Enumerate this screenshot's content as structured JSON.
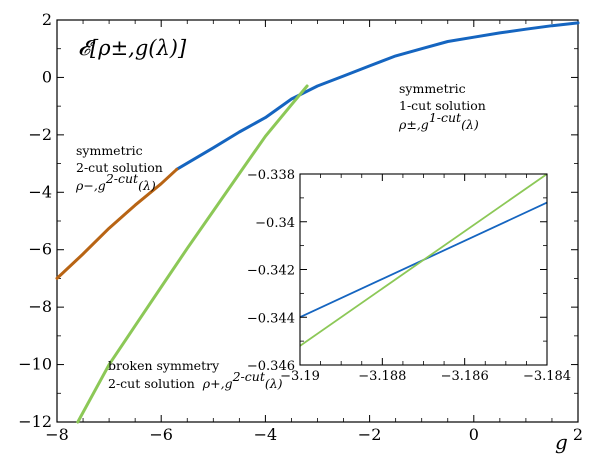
{
  "chart_data": {
    "type": "line",
    "title": "𝓔[ρ±,g(λ)]",
    "xlabel": "g",
    "ylabel": "",
    "xlim": [
      -8,
      2
    ],
    "ylim": [
      -12,
      2
    ],
    "xticks": [
      -8,
      -6,
      -4,
      -2,
      0,
      2
    ],
    "xtick_labels": [
      "−8",
      "−6",
      "−4",
      "−2",
      "0",
      "2"
    ],
    "yticks": [
      2,
      0,
      -2,
      -4,
      -6,
      -8,
      -10,
      -12
    ],
    "ytick_labels": [
      "2",
      "0",
      "−2",
      "−4",
      "−6",
      "−8",
      "−10",
      "−12"
    ],
    "colors": {
      "one_cut": "#1565c0",
      "two_cut_minus": "#b86414",
      "two_cut_plus": "#8cc857"
    },
    "series": [
      {
        "key": "one_cut",
        "x": [
          -5.7,
          -5.0,
          -4.5,
          -4.0,
          -3.5,
          -3.0,
          -2.5,
          -2.0,
          -1.5,
          -1.0,
          -0.5,
          0.0,
          0.5,
          1.0,
          1.5,
          2.0
        ],
        "y": [
          -3.2,
          -2.45,
          -1.9,
          -1.4,
          -0.75,
          -0.3,
          0.05,
          0.4,
          0.75,
          1.0,
          1.25,
          1.4,
          1.55,
          1.68,
          1.8,
          1.9
        ]
      },
      {
        "key": "two_cut_minus",
        "x": [
          -8.0,
          -7.5,
          -7.0,
          -6.5,
          -6.0,
          -5.7
        ],
        "y": [
          -7.0,
          -6.15,
          -5.25,
          -4.45,
          -3.7,
          -3.2
        ]
      },
      {
        "key": "two_cut_plus",
        "x": [
          -7.6,
          -7.0,
          -6.5,
          -6.0,
          -5.5,
          -5.0,
          -4.5,
          -4.0,
          -3.5,
          -3.2
        ],
        "y": [
          -12.0,
          -10.0,
          -8.65,
          -7.3,
          -5.95,
          -4.65,
          -3.35,
          -2.05,
          -0.95,
          -0.3
        ]
      }
    ],
    "annotations": {
      "one_cut": {
        "line1": "symmetric",
        "line2": "1-cut solution",
        "math": "ρ±,g",
        "sup": "1-cut",
        "arg": "(λ)"
      },
      "two_cut_minus": {
        "line1": "symmetric",
        "line2": "2-cut solution",
        "math": "ρ−,g",
        "sup": "2-cut",
        "arg": "(λ)"
      },
      "two_cut_plus": {
        "line1": "broken symmetry",
        "line2": "2-cut solution",
        "math": "ρ+,g",
        "sup": "2-cut",
        "arg": "(λ)"
      }
    },
    "inset": {
      "xlim": [
        -3.19,
        -3.184
      ],
      "ylim": [
        -0.346,
        -0.338
      ],
      "xticks": [
        -3.19,
        -3.188,
        -3.186,
        -3.184
      ],
      "xtick_labels": [
        "−3.19",
        "−3.188",
        "−3.186",
        "−3.184"
      ],
      "yticks": [
        -0.338,
        -0.34,
        -0.342,
        -0.344,
        -0.346
      ],
      "ytick_labels": [
        "−0.338",
        "−0.34",
        "−0.342",
        "−0.344",
        "−0.346"
      ],
      "series": [
        {
          "key": "one_cut",
          "x": [
            -3.19,
            -3.184
          ],
          "y": [
            -0.344,
            -0.3392
          ]
        },
        {
          "key": "two_cut_plus",
          "x": [
            -3.19,
            -3.184
          ],
          "y": [
            -0.3452,
            -0.338
          ]
        }
      ]
    }
  }
}
